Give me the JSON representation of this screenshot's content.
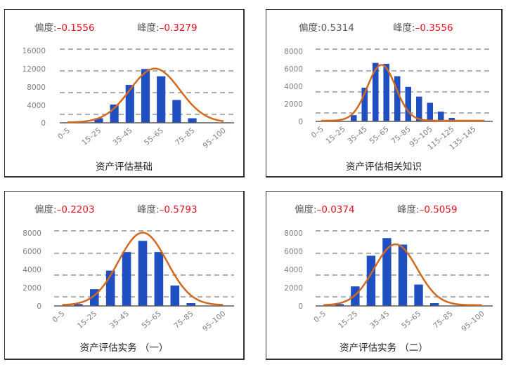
{
  "colors": {
    "bar": "#1f4fc1",
    "curve": "#d2691e",
    "negative_value": "#e8101e",
    "text": "#595959",
    "grid": "#7f7f7f"
  },
  "chart_data": [
    {
      "type": "bar",
      "title": "资产评估基础",
      "skew_label": "偏度:",
      "skew_value": "-0.1556",
      "kurt_label": "峰度:",
      "kurt_value": "-0.3279",
      "categories": [
        "0-5",
        "5-15",
        "15-25",
        "25-35",
        "35-45",
        "45-55",
        "55-65",
        "65-75",
        "75-85",
        "85-95",
        "95-100"
      ],
      "x_tick_labels": [
        "0-5",
        "15-25",
        "35-45",
        "55-65",
        "75-85",
        "95-100"
      ],
      "values": [
        0,
        0,
        1000,
        4000,
        8300,
        11800,
        10200,
        5000,
        1000,
        0,
        0
      ],
      "curve": "normal fit (orange)",
      "ylim": [
        0,
        16000
      ],
      "y_ticks": [
        0,
        4000,
        8000,
        12000,
        16000
      ],
      "grid": "dashed horizontal"
    },
    {
      "type": "bar",
      "title": "资产评估相关知识",
      "skew_label": "偏度:",
      "skew_value": "0.5314",
      "kurt_label": "峰度:",
      "kurt_value": "-0.3556",
      "categories": [
        "0-5",
        "5-15",
        "15-25",
        "25-35",
        "35-45",
        "45-55",
        "55-65",
        "65-75",
        "75-85",
        "85-95",
        "95-105",
        "105-115",
        "115-125",
        "125-135",
        "135-145",
        "145-155"
      ],
      "x_tick_labels": [
        "0-5",
        "15-25",
        "35-45",
        "55-65",
        "75-85",
        "95-105",
        "115-125",
        "135-145"
      ],
      "values": [
        0,
        0,
        0,
        700,
        3800,
        6600,
        6500,
        5100,
        3900,
        2800,
        2100,
        1100,
        400,
        0,
        0,
        0
      ],
      "curve": "normal fit (orange)",
      "ylim": [
        0,
        8000
      ],
      "y_ticks": [
        0,
        2000,
        4000,
        6000,
        8000
      ],
      "grid": "dashed horizontal"
    },
    {
      "type": "bar",
      "title": "资产评估实务（一）",
      "skew_label": "偏度:",
      "skew_value": "-0.2203",
      "kurt_label": "峰度:",
      "kurt_value": "-0.5793",
      "categories": [
        "0-5",
        "5-15",
        "15-25",
        "25-35",
        "35-45",
        "45-55",
        "55-65",
        "65-75",
        "75-85",
        "85-95",
        "95-100"
      ],
      "x_tick_labels": [
        "0-5",
        "15-25",
        "35-45",
        "55-65",
        "75-85",
        "95-100"
      ],
      "values": [
        0,
        200,
        1800,
        3800,
        5800,
        7000,
        5800,
        2200,
        300,
        0,
        0
      ],
      "curve": "normal fit (orange)",
      "ylim": [
        0,
        8000
      ],
      "y_ticks": [
        0,
        2000,
        4000,
        6000,
        8000
      ],
      "grid": "dashed horizontal"
    },
    {
      "type": "bar",
      "title": "资产评估实务（二）",
      "skew_label": "偏度:",
      "skew_value": "-0.0374",
      "kurt_label": "峰度:",
      "kurt_value": "-0.5059",
      "categories": [
        "0-5",
        "5-15",
        "15-25",
        "25-35",
        "35-45",
        "45-55",
        "55-65",
        "65-75",
        "75-85",
        "85-95",
        "95-100"
      ],
      "x_tick_labels": [
        "0-5",
        "15-25",
        "35-45",
        "55-65",
        "75-85",
        "95-100"
      ],
      "values": [
        0,
        200,
        2100,
        5400,
        7300,
        6600,
        2300,
        300,
        0,
        0,
        0
      ],
      "curve": "normal fit (orange)",
      "ylim": [
        0,
        8000
      ],
      "y_ticks": [
        0,
        2000,
        4000,
        6000,
        8000
      ],
      "grid": "dashed horizontal"
    }
  ],
  "panels": [
    {
      "title": "资产评估基础",
      "skew_label": "偏度:",
      "skew_value": "–0.1556",
      "kurt_label": "峰度:",
      "kurt_value": "–0.3279"
    },
    {
      "title": "资产评估相关知识",
      "skew_label": "偏度:",
      "skew_value": "0.5314",
      "kurt_label": "峰度:",
      "kurt_value": "–0.3556"
    },
    {
      "title": "资产评估实务 （一）",
      "skew_label": "偏度:",
      "skew_value": "–0.2203",
      "kurt_label": "峰度:",
      "kurt_value": "–0.5793"
    },
    {
      "title": "资产评估实务 （二）",
      "skew_label": "偏度:",
      "skew_value": "–0.0374",
      "kurt_label": "峰度:",
      "kurt_value": "–0.5059"
    }
  ]
}
